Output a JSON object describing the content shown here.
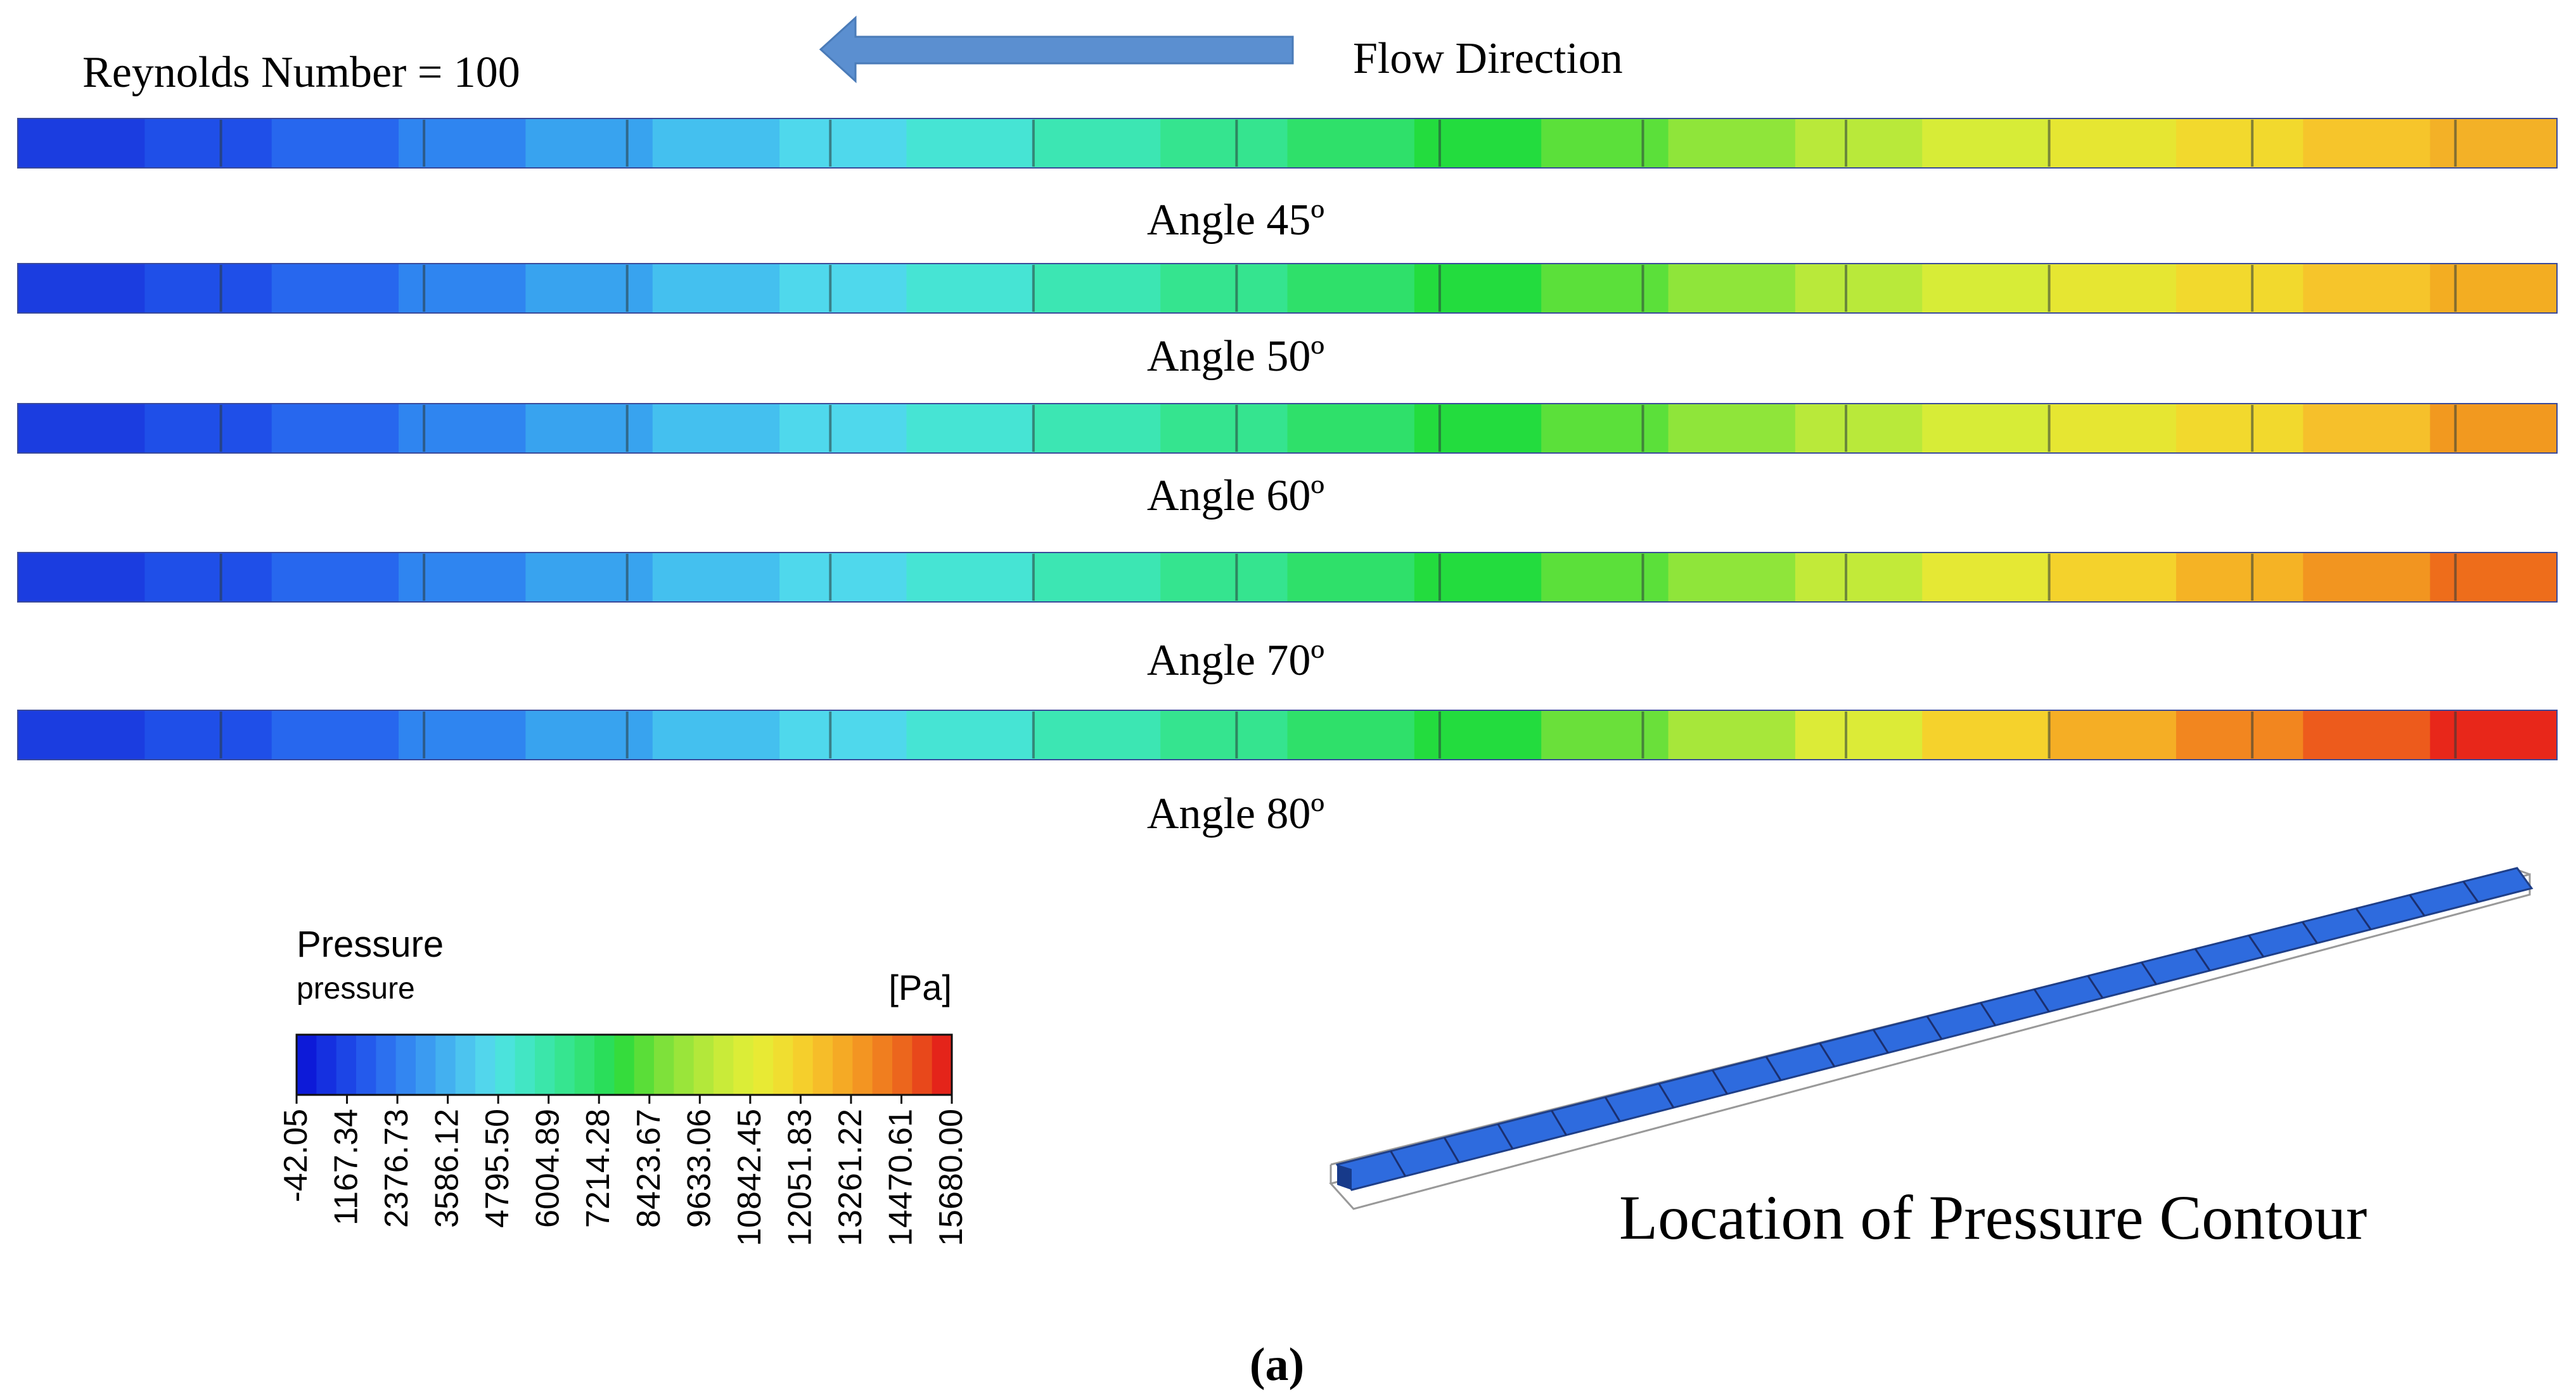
{
  "header": {
    "reynolds_label": "Reynolds Number = 100",
    "flow_label": "Flow Direction"
  },
  "contours": [
    {
      "label": "Angle 45º",
      "colors": [
        "#1b3de0",
        "#1f4fe8",
        "#2767ee",
        "#2f85f0",
        "#38a3ef",
        "#44c0ef",
        "#4fd8ec",
        "#46e4d4",
        "#3ce6b3",
        "#35e48f",
        "#2fe06a",
        "#23dc3e",
        "#5be03a",
        "#8fe53a",
        "#b9e93a",
        "#d7ec37",
        "#e6e632",
        "#f2d92d",
        "#f6c52b",
        "#f3b127"
      ]
    },
    {
      "label": "Angle 50º",
      "colors": [
        "#1b3de0",
        "#1f4fe8",
        "#2767ee",
        "#2f85f0",
        "#38a3ef",
        "#44c0ef",
        "#4fd8ec",
        "#46e4d4",
        "#3ce6b3",
        "#35e48f",
        "#2fe06a",
        "#23dc3e",
        "#5be03a",
        "#8fe53a",
        "#b9e93a",
        "#d7ec37",
        "#e6e632",
        "#f2d92d",
        "#f6c52b",
        "#f3ad22"
      ]
    },
    {
      "label": "Angle 60º",
      "colors": [
        "#1b3de0",
        "#1f4fe8",
        "#2767ee",
        "#2f85f0",
        "#38a3ef",
        "#44c0ef",
        "#4fd8ec",
        "#46e4d4",
        "#3ce6b3",
        "#35e48f",
        "#2fe06a",
        "#23dc3e",
        "#5be03a",
        "#8fe53a",
        "#b9e93a",
        "#d7ec37",
        "#e6e632",
        "#f2d92d",
        "#f6c02b",
        "#f2991f"
      ]
    },
    {
      "label": "Angle 70º",
      "colors": [
        "#1b3de0",
        "#1f4fe8",
        "#2767ee",
        "#2f85f0",
        "#38a3ef",
        "#44c0ef",
        "#4fd8ec",
        "#46e4d4",
        "#3ce6b3",
        "#35e48f",
        "#2fe06a",
        "#23dc3e",
        "#5be03a",
        "#8fe53a",
        "#c2ea39",
        "#e5e834",
        "#f4d22c",
        "#f5b325",
        "#f29520",
        "#ee6d1b"
      ]
    },
    {
      "label": "Angle 80º",
      "colors": [
        "#1b3de0",
        "#1f4fe8",
        "#2767ee",
        "#2f85f0",
        "#38a3ef",
        "#44c0ef",
        "#4fd8ec",
        "#46e4d4",
        "#3ce6b3",
        "#35e48f",
        "#2fe06a",
        "#23dc3e",
        "#6ae03a",
        "#a7e73a",
        "#dceb37",
        "#f5d22c",
        "#f5ae25",
        "#f2861f",
        "#ed5b1c",
        "#e8271a"
      ]
    }
  ],
  "legend": {
    "title": "Pressure",
    "subtitle": "pressure",
    "unit": "[Pa]",
    "ticks": [
      "-42.05",
      "1167.34",
      "2376.73",
      "3586.12",
      "4795.50",
      "6004.89",
      "7214.28",
      "8423.67",
      "9633.06",
      "10842.45",
      "12051.83",
      "13261.22",
      "14470.61",
      "15680.00"
    ],
    "colors": [
      "#0d1ad8",
      "#1530e0",
      "#1c45e6",
      "#245aec",
      "#2c70ef",
      "#3386f1",
      "#3b9bf1",
      "#43b0f0",
      "#4cc4ef",
      "#52d6ec",
      "#4be3dc",
      "#42e6c4",
      "#3be6aa",
      "#36e590",
      "#32e276",
      "#2ade5a",
      "#35dc3c",
      "#5ade38",
      "#7ee13a",
      "#9ae53a",
      "#b3e83a",
      "#c9eb39",
      "#dbed37",
      "#e8ea34",
      "#f0de30",
      "#f5cf2c",
      "#f6bd29",
      "#f5aa25",
      "#f39522",
      "#f07e1f",
      "#ec661d",
      "#e8481b",
      "#e4241a"
    ]
  },
  "location": {
    "label": "Location of Pressure Contour",
    "block_color": "#2e6bde"
  },
  "caption": {
    "text": "(a)"
  }
}
